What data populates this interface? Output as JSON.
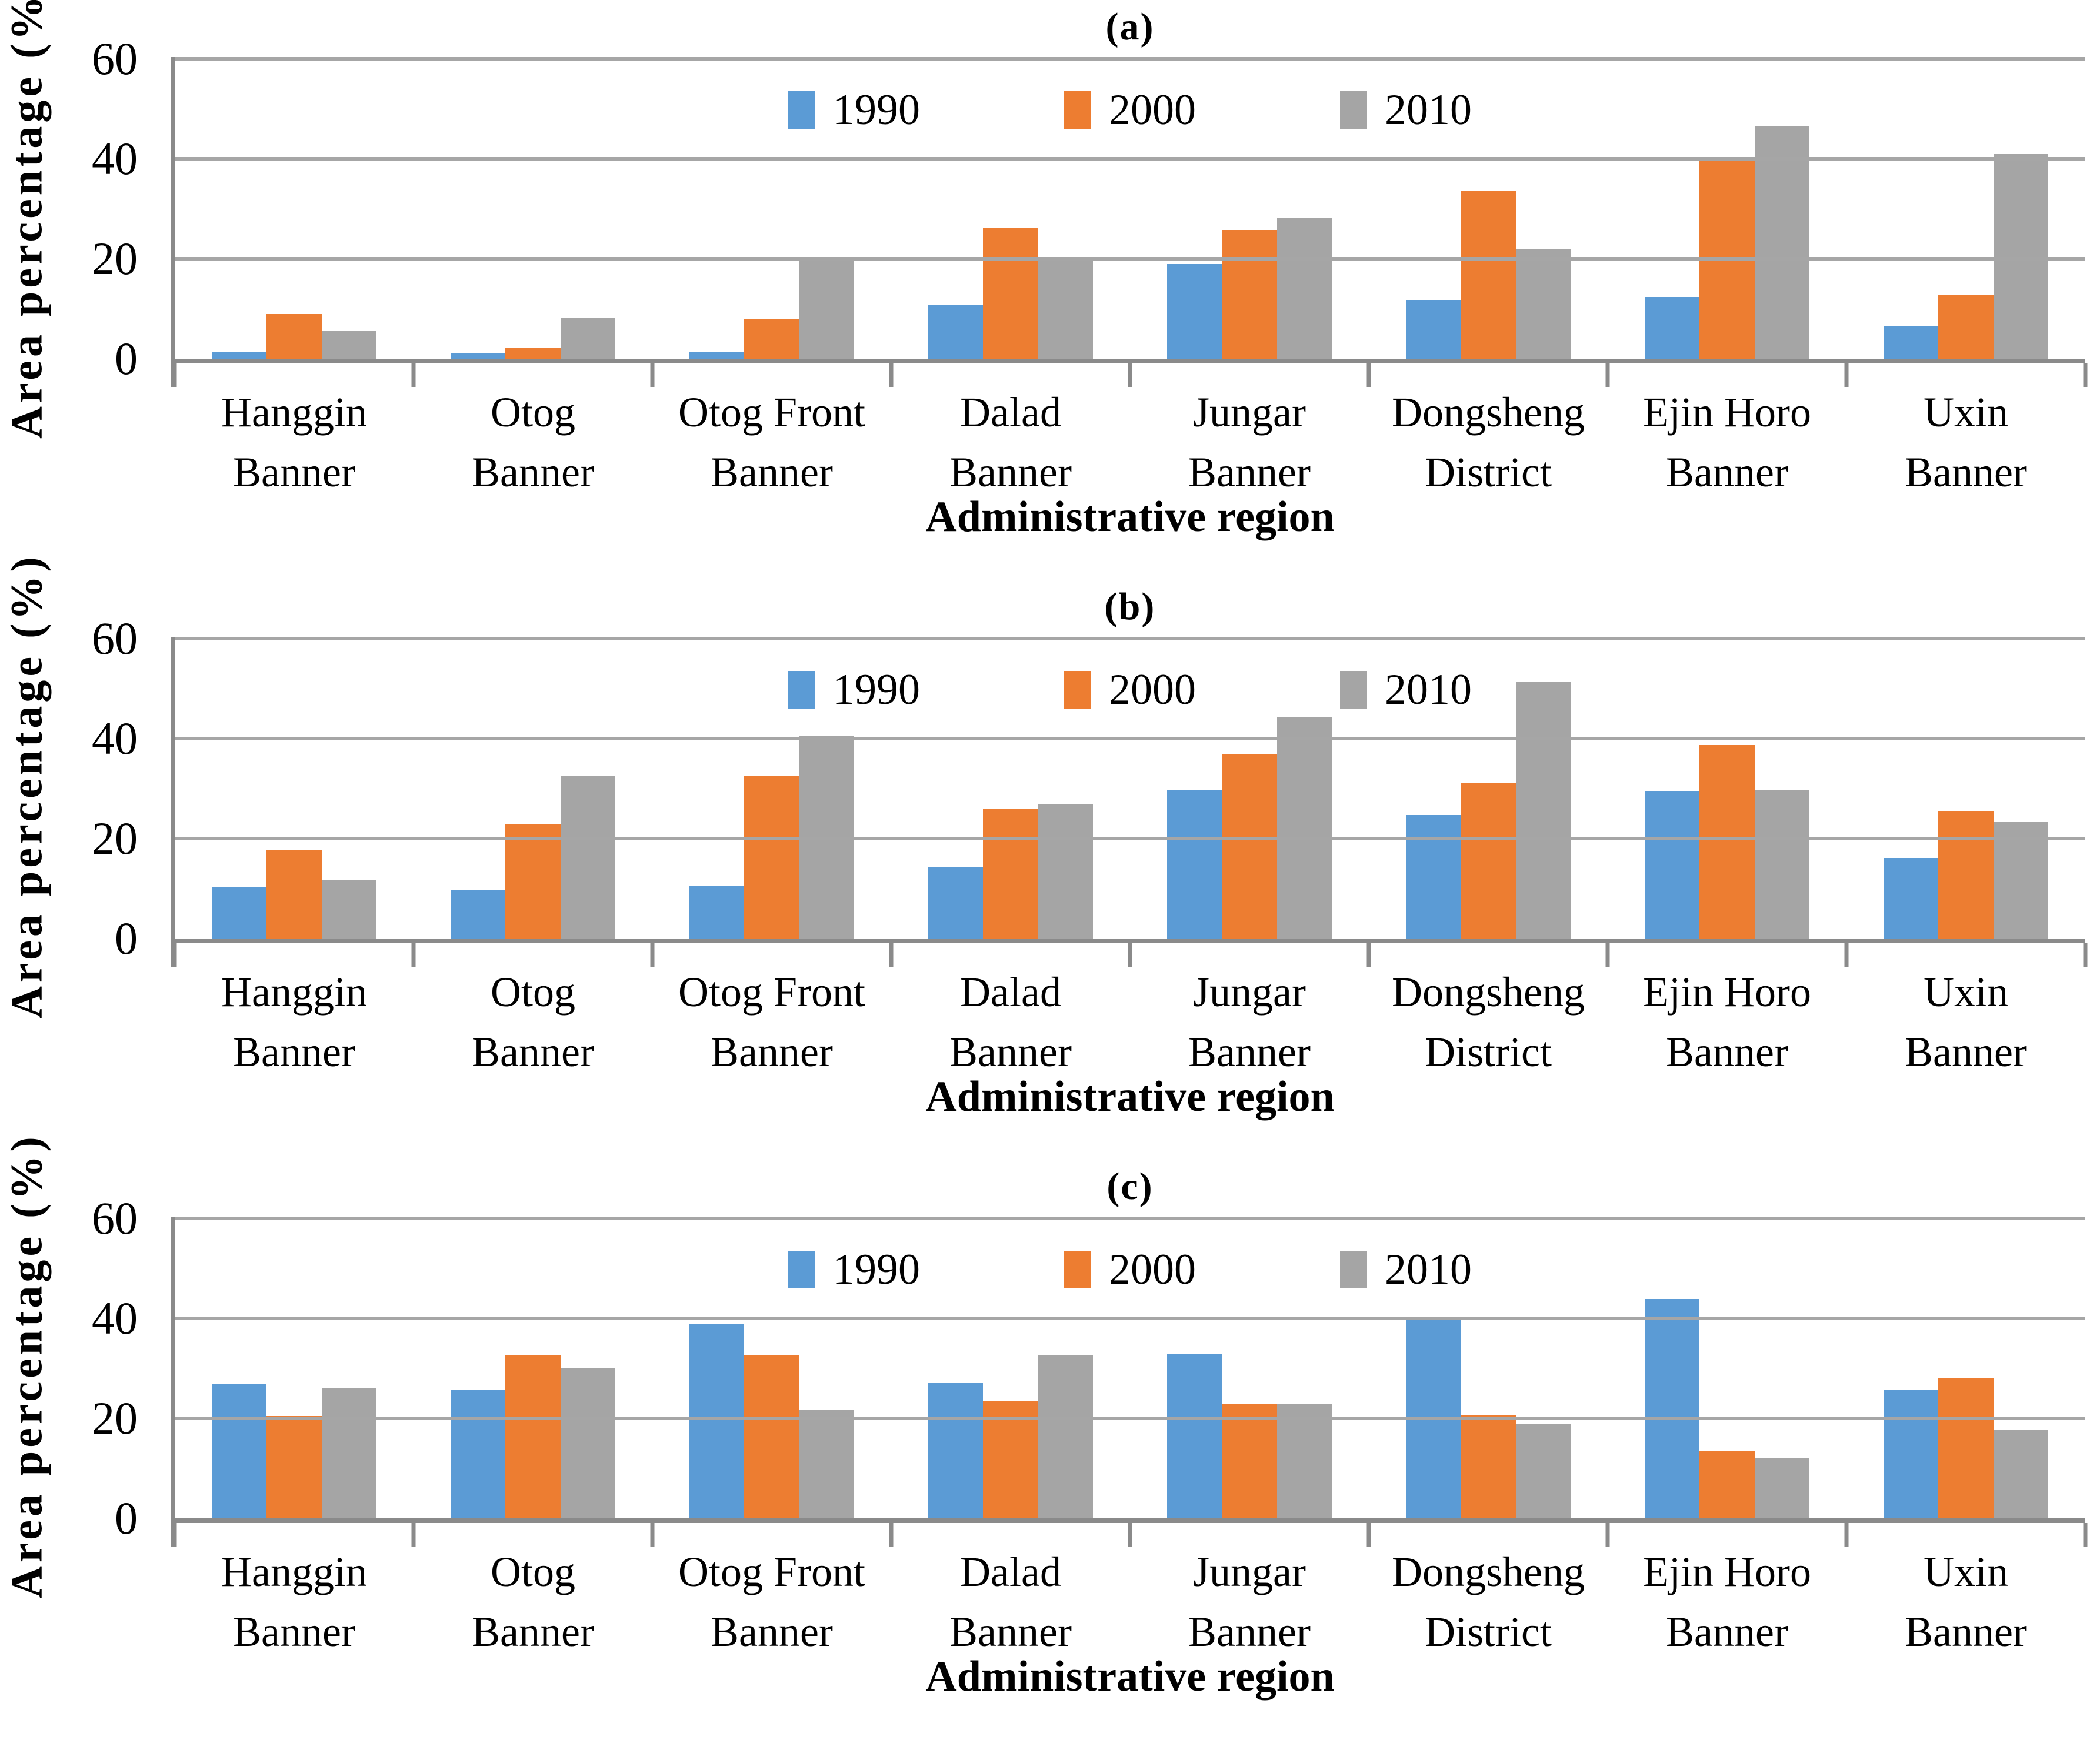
{
  "figure": {
    "background": "#ffffff",
    "grid_color": "#a6a6a6",
    "axis_color": "#8a8a8a",
    "y_axis_title": "Area percentage (%)",
    "x_axis_title": "Administrative region"
  },
  "legend": {
    "items": [
      {
        "label": "1990",
        "color": "#5B9BD5"
      },
      {
        "label": "2000",
        "color": "#ED7D31"
      },
      {
        "label": "2010",
        "color": "#A5A5A5"
      }
    ]
  },
  "chart_data": [
    {
      "type": "bar",
      "title": "(a)",
      "ylabel": "Area percentage (%)",
      "xlabel": "Administrative region",
      "ylim": [
        0,
        60
      ],
      "yticks": [
        0,
        20,
        40,
        60
      ],
      "grid": true,
      "legend_position": "top-center",
      "categories": [
        [
          "Hanggin",
          "Banner"
        ],
        [
          "Otog",
          "Banner"
        ],
        [
          "Otog Front",
          "Banner"
        ],
        [
          "Dalad",
          "Banner"
        ],
        [
          "Jungar",
          "Banner"
        ],
        [
          "Dongsheng",
          "District"
        ],
        [
          "Ejin Horo",
          "Banner"
        ],
        [
          "Uxin",
          "Banner"
        ]
      ],
      "series": [
        {
          "name": "1990",
          "color": "#5B9BD5",
          "values": [
            1.3,
            1.2,
            1.4,
            10.8,
            18.9,
            11.6,
            12.3,
            6.6
          ]
        },
        {
          "name": "2000",
          "color": "#ED7D31",
          "values": [
            9.0,
            2.1,
            8.0,
            26.2,
            25.8,
            33.6,
            40.1,
            12.8
          ]
        },
        {
          "name": "2010",
          "color": "#A5A5A5",
          "values": [
            5.5,
            8.2,
            19.9,
            19.8,
            28.1,
            21.9,
            46.6,
            41.0
          ]
        }
      ]
    },
    {
      "type": "bar",
      "title": "(b)",
      "ylabel": "Area percentage (%)",
      "xlabel": "Administrative region",
      "ylim": [
        0,
        60
      ],
      "yticks": [
        0,
        20,
        40,
        60
      ],
      "grid": true,
      "legend_position": "top-center",
      "categories": [
        [
          "Hanggin",
          "Banner"
        ],
        [
          "Otog",
          "Banner"
        ],
        [
          "Otog Front",
          "Banner"
        ],
        [
          "Dalad",
          "Banner"
        ],
        [
          "Jungar",
          "Banner"
        ],
        [
          "Dongsheng",
          "District"
        ],
        [
          "Ejin Horo",
          "Banner"
        ],
        [
          "Uxin",
          "Banner"
        ]
      ],
      "series": [
        {
          "name": "1990",
          "color": "#5B9BD5",
          "values": [
            10.4,
            9.6,
            10.5,
            14.2,
            29.8,
            24.7,
            29.4,
            16.1
          ]
        },
        {
          "name": "2000",
          "color": "#ED7D31",
          "values": [
            17.8,
            22.9,
            32.6,
            25.9,
            37.0,
            31.1,
            38.7,
            25.5
          ]
        },
        {
          "name": "2010",
          "color": "#A5A5A5",
          "values": [
            11.7,
            32.6,
            40.6,
            26.8,
            44.4,
            51.3,
            29.8,
            23.3
          ]
        }
      ]
    },
    {
      "type": "bar",
      "title": "(c)",
      "ylabel": "Area percentage (%)",
      "xlabel": "Administrative region",
      "ylim": [
        0,
        60
      ],
      "yticks": [
        0,
        20,
        40,
        60
      ],
      "grid": true,
      "legend_position": "top-center",
      "categories": [
        [
          "Hanggin",
          "Banner"
        ],
        [
          "Otog",
          "Banner"
        ],
        [
          "Otog Front",
          "Banner"
        ],
        [
          "Dalad",
          "Banner"
        ],
        [
          "Jungar",
          "Banner"
        ],
        [
          "Dongsheng",
          "District"
        ],
        [
          "Ejin Horo",
          "Banner"
        ],
        [
          "Uxin",
          "Banner"
        ]
      ],
      "series": [
        {
          "name": "1990",
          "color": "#5B9BD5",
          "values": [
            26.9,
            25.7,
            38.9,
            27.1,
            33.0,
            40.4,
            43.9,
            25.7
          ]
        },
        {
          "name": "2000",
          "color": "#ED7D31",
          "values": [
            20.5,
            32.7,
            32.7,
            23.4,
            22.9,
            20.6,
            13.5,
            28.0
          ]
        },
        {
          "name": "2010",
          "color": "#A5A5A5",
          "values": [
            26.0,
            30.0,
            21.8,
            32.7,
            22.9,
            18.9,
            12.0,
            17.6
          ]
        }
      ]
    }
  ]
}
